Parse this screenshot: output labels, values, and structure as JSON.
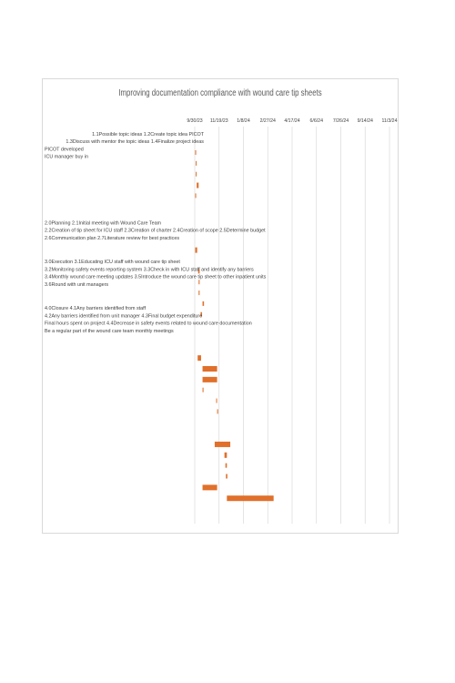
{
  "chart_data": {
    "type": "gantt",
    "title": "Improving documentation compliance with wound care tip sheets",
    "x_axis": {
      "type": "date",
      "tick_labels": [
        "9/30/23",
        "11/19/23",
        "1/8/24",
        "2/27/24",
        "4/17/24",
        "6/6/24",
        "7/26/24",
        "9/14/24",
        "11/3/24"
      ],
      "tick_dates": [
        "2023-09-30",
        "2023-11-19",
        "2024-01-08",
        "2024-02-27",
        "2024-04-17",
        "2024-06-06",
        "2024-07-26",
        "2024-09-14",
        "2024-11-03"
      ],
      "range": [
        "2023-09-30",
        "2024-11-03"
      ]
    },
    "grid": "vertical",
    "legend": "none",
    "bar_color": "#e0702b",
    "tasks": [
      {
        "label": "1.1Possible topic ideas 1.2Create topic idea PICOT",
        "start": "2023-10-01",
        "end": "2023-10-02"
      },
      {
        "label": "1.3Discuss with mentor the topic ideas 1.4Finalize project ideas",
        "start": "2023-10-02",
        "end": "2023-10-03"
      },
      {
        "label": "PICOT developed",
        "start": "2023-10-02",
        "end": "2023-10-03"
      },
      {
        "label": "ICU manager buy in",
        "start": "2023-10-04",
        "end": "2023-10-08"
      },
      {
        "label": "",
        "start": "2023-10-01",
        "end": "2023-10-02"
      },
      {
        "label": "",
        "start": null,
        "end": null
      },
      {
        "label": "",
        "start": null,
        "end": null
      },
      {
        "label": "2.0Planning 2.1Initial meeting with Wound Care Team",
        "start": null,
        "end": null
      },
      {
        "label": "2.2Creation of tip sheet for ICU staff 2.3Creation of charter 2.4Creation of scope 2.5Determine budget",
        "start": null,
        "end": null
      },
      {
        "label": "2.6Communication plan 2.7Literature review for best practices",
        "start": "2023-10-01",
        "end": "2023-10-05"
      },
      {
        "label": "",
        "start": null,
        "end": null
      },
      {
        "label": "3.0Execution 3.1Educating ICU staff with wound care tip sheet",
        "start": "2023-10-07",
        "end": "2023-10-10"
      },
      {
        "label": "3.2Monitoring safety events reporting system 3.3Check in with ICU staff and identify any barriers",
        "start": "2023-10-08",
        "end": "2023-10-10"
      },
      {
        "label": "3.4Monthly wound care meeting updates 3.5Introduce the wound care tip sheet to other inpatient units",
        "start": "2023-10-08",
        "end": "2023-10-10"
      },
      {
        "label": "3.6Round with unit managers",
        "start": "2023-10-16",
        "end": "2023-10-19"
      },
      {
        "label": "",
        "start": "2023-10-12",
        "end": "2023-10-15"
      },
      {
        "label": "4.0Closure 4.1Any barriers identified from staff",
        "start": null,
        "end": null
      },
      {
        "label": "4.2Any barriers identified from unit manager 4.3Final budget expenditure",
        "start": null,
        "end": null
      },
      {
        "label": "Final hours spent on project 4.4Decrease in safety events related to wound care documentation",
        "start": null,
        "end": null
      },
      {
        "label": "Be a regular part of the wound care team monthly meetings",
        "start": "2023-10-06",
        "end": "2023-10-13"
      },
      {
        "label": "",
        "start": "2023-10-16",
        "end": "2023-11-15"
      },
      {
        "label": "",
        "start": "2023-10-16",
        "end": "2023-11-15"
      },
      {
        "label": "",
        "start": "2023-10-16",
        "end": "2023-10-18"
      },
      {
        "label": "",
        "start": "2023-11-13",
        "end": "2023-11-14"
      },
      {
        "label": "",
        "start": "2023-11-15",
        "end": "2023-11-17"
      },
      {
        "label": "",
        "start": null,
        "end": null
      },
      {
        "label": "",
        "start": null,
        "end": null
      },
      {
        "label": "",
        "start": "2023-11-10",
        "end": "2023-12-12"
      },
      {
        "label": "",
        "start": "2023-11-30",
        "end": "2023-12-05"
      },
      {
        "label": "",
        "start": "2023-12-02",
        "end": "2023-12-05"
      },
      {
        "label": "",
        "start": "2023-12-03",
        "end": "2023-12-06"
      },
      {
        "label": "",
        "start": "2023-10-16",
        "end": "2023-11-15"
      },
      {
        "label": "",
        "start": "2023-12-05",
        "end": "2024-03-10"
      }
    ]
  }
}
